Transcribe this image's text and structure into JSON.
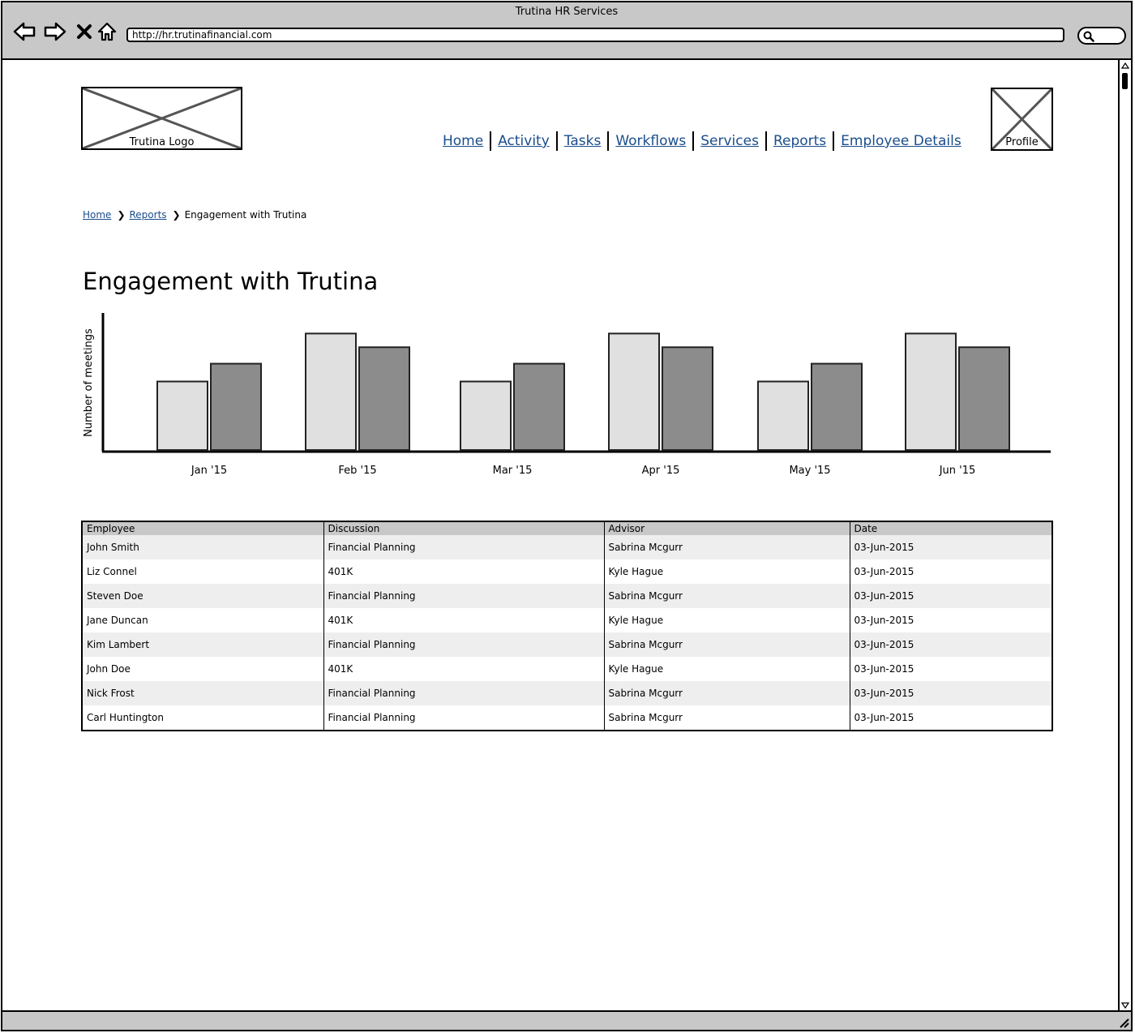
{
  "window": {
    "title": "Trutina HR Services",
    "url": "http://hr.trutinafinancial.com"
  },
  "header": {
    "logo_label": "Trutina Logo",
    "profile_label": "Profile",
    "nav": [
      "Home",
      "Activity",
      "Tasks",
      "Workflows",
      "Services",
      "Reports",
      "Employee Details"
    ]
  },
  "breadcrumb": {
    "items": [
      "Home",
      "Reports"
    ],
    "current": "Engagement with Trutina"
  },
  "page": {
    "title": "Engagement with Trutina"
  },
  "chart_data": {
    "type": "bar",
    "title": "",
    "xlabel": "",
    "ylabel": "Number of meetings",
    "categories": [
      "Jan '15",
      "Feb '15",
      "Mar '15",
      "Apr '15",
      "May '15",
      "Jun '15"
    ],
    "series": [
      {
        "values": [
          50,
          85,
          50,
          85,
          50,
          85
        ],
        "color": "#e0e0e0"
      },
      {
        "values": [
          63,
          75,
          63,
          75,
          63,
          75
        ],
        "color": "#8c8c8c"
      }
    ],
    "ylim": [
      0,
      100
    ],
    "grid": false,
    "legend": "none"
  },
  "table": {
    "columns": [
      "Employee",
      "Discussion",
      "Advisor",
      "Date"
    ],
    "rows": [
      [
        "John Smith",
        "Financial Planning",
        "Sabrina Mcgurr",
        "03-Jun-2015"
      ],
      [
        "Liz Connel",
        "401K",
        "Kyle Hague",
        "03-Jun-2015"
      ],
      [
        "Steven Doe",
        "Financial Planning",
        "Sabrina Mcgurr",
        "03-Jun-2015"
      ],
      [
        "Jane Duncan",
        "401K",
        "Kyle Hague",
        "03-Jun-2015"
      ],
      [
        "Kim Lambert",
        "Financial Planning",
        "Sabrina Mcgurr",
        "03-Jun-2015"
      ],
      [
        "John Doe",
        "401K",
        "Kyle Hague",
        "03-Jun-2015"
      ],
      [
        "Nick Frost",
        "Financial Planning",
        "Sabrina Mcgurr",
        "03-Jun-2015"
      ],
      [
        "Carl Huntington",
        "Financial Planning",
        "Sabrina Mcgurr",
        "03-Jun-2015"
      ]
    ]
  }
}
